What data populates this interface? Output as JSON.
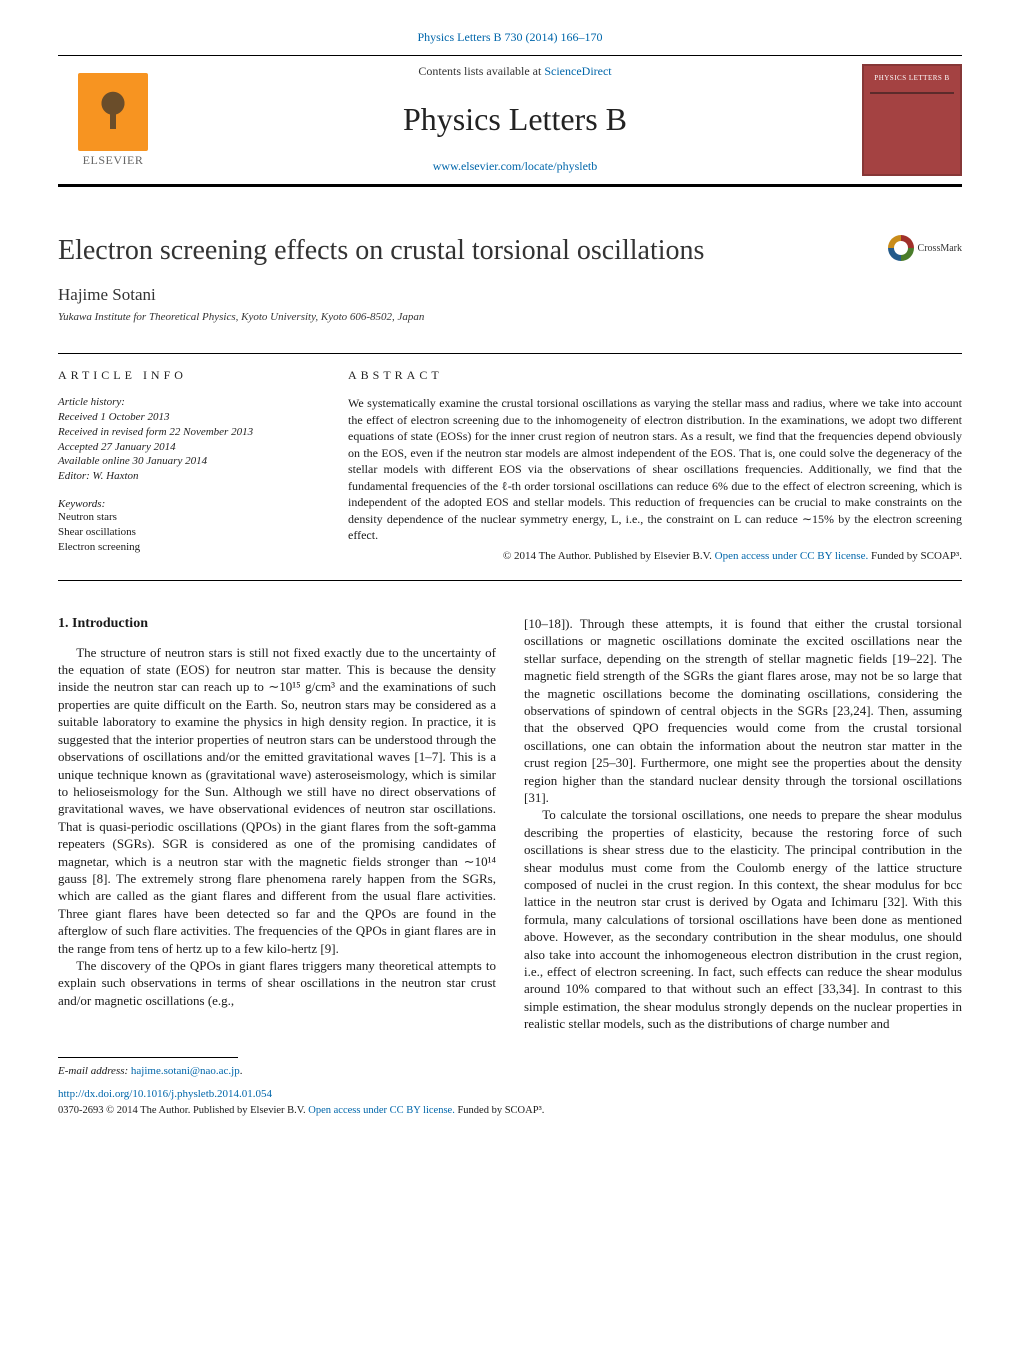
{
  "header": {
    "citation": "Physics Letters B 730 (2014) 166–170",
    "contents_line_prefix": "Contents lists available at ",
    "contents_link": "ScienceDirect",
    "journal_name": "Physics Letters B",
    "journal_home": "www.elsevier.com/locate/physletb",
    "publisher_logo_text": "ELSEVIER",
    "cover_label": "PHYSICS LETTERS B"
  },
  "crossmark_label": "CrossMark",
  "title": "Electron screening effects on crustal torsional oscillations",
  "author": "Hajime Sotani",
  "affiliation": "Yukawa Institute for Theoretical Physics, Kyoto University, Kyoto 606-8502, Japan",
  "article_info": {
    "heading": "article info",
    "history_label": "Article history:",
    "history": [
      "Received 1 October 2013",
      "Received in revised form 22 November 2013",
      "Accepted 27 January 2014",
      "Available online 30 January 2014"
    ],
    "editor": "Editor: W. Haxton",
    "keywords_label": "Keywords:",
    "keywords": [
      "Neutron stars",
      "Shear oscillations",
      "Electron screening"
    ]
  },
  "abstract": {
    "heading": "abstract",
    "text": "We systematically examine the crustal torsional oscillations as varying the stellar mass and radius, where we take into account the effect of electron screening due to the inhomogeneity of electron distribution. In the examinations, we adopt two different equations of state (EOSs) for the inner crust region of neutron stars. As a result, we find that the frequencies depend obviously on the EOS, even if the neutron star models are almost independent of the EOS. That is, one could solve the degeneracy of the stellar models with different EOS via the observations of shear oscillations frequencies. Additionally, we find that the fundamental frequencies of the ℓ-th order torsional oscillations can reduce 6% due to the effect of electron screening, which is independent of the adopted EOS and stellar models. This reduction of frequencies can be crucial to make constraints on the density dependence of the nuclear symmetry energy, L, i.e., the constraint on L can reduce ∼15% by the electron screening effect.",
    "copyright": "© 2014 The Author. Published by Elsevier B.V. ",
    "license_text": "Open access under CC BY license.",
    "funded": " Funded by SCOAP³."
  },
  "section1": {
    "heading": "1. Introduction",
    "p1": "The structure of neutron stars is still not fixed exactly due to the uncertainty of the equation of state (EOS) for neutron star matter. This is because the density inside the neutron star can reach up to ∼10¹⁵ g/cm³ and the examinations of such properties are quite difficult on the Earth. So, neutron stars may be considered as a suitable laboratory to examine the physics in high density region. In practice, it is suggested that the interior properties of neutron stars can be understood through the observations of oscillations and/or the emitted gravitational waves [1–7]. This is a unique technique known as (gravitational wave) asteroseismology, which is similar to helioseismology for the Sun. Although we still have no direct observations of gravitational waves, we have observational evidences of neutron star oscillations. That is quasi-periodic oscillations (QPOs) in the giant flares from the soft-gamma repeaters (SGRs). SGR is considered as one of the promising candidates of magnetar, which is a neutron star with the magnetic fields stronger than ∼10¹⁴ gauss [8]. The extremely strong flare phenomena rarely happen from the SGRs, which are called as the giant flares and different from the usual flare activities. Three giant flares have been detected so far and the QPOs are found in the afterglow of such flare activities. The frequencies of the QPOs in giant flares are in the range from tens of hertz up to a few kilo-hertz [9].",
    "p2": "The discovery of the QPOs in giant flares triggers many theoretical attempts to explain such observations in terms of shear oscillations in the neutron star crust and/or magnetic oscillations (e.g.,",
    "p3_start": "[10–18]). Through these attempts, it is found that either the crustal torsional oscillations or magnetic oscillations dominate the excited oscillations near the stellar surface, depending on the strength of stellar magnetic fields [19–22]. The magnetic field strength of the SGRs the giant flares arose, may not be so large that the magnetic oscillations become the dominating oscillations, considering the observations of spindown of central objects in the SGRs [23,24]. Then, assuming that the observed QPO frequencies would come from the crustal torsional oscillations, one can obtain the information about the neutron star matter in the crust region [25–30]. Furthermore, one might see the properties about the density region higher than the standard nuclear density through the torsional oscillations [31].",
    "p4": "To calculate the torsional oscillations, one needs to prepare the shear modulus describing the properties of elasticity, because the restoring force of such oscillations is shear stress due to the elasticity. The principal contribution in the shear modulus must come from the Coulomb energy of the lattice structure composed of nuclei in the crust region. In this context, the shear modulus for bcc lattice in the neutron star crust is derived by Ogata and Ichimaru [32]. With this formula, many calculations of torsional oscillations have been done as mentioned above. However, as the secondary contribution in the shear modulus, one should also take into account the inhomogeneous electron distribution in the crust region, i.e., effect of electron screening. In fact, such effects can reduce the shear modulus around 10% compared to that without such an effect [33,34]. In contrast to this simple estimation, the shear modulus strongly depends on the nuclear properties in realistic stellar models, such as the distributions of charge number and"
  },
  "footer": {
    "email_label": "E-mail address: ",
    "email": "hajime.sotani@nao.ac.jp",
    "doi": "http://dx.doi.org/10.1016/j.physletb.2014.01.054",
    "issn_line": "0370-2693 © 2014 The Author. Published by Elsevier B.V. ",
    "license_text": "Open access under CC BY license.",
    "funded": " Funded by SCOAP³."
  },
  "colors": {
    "link": "#0066aa",
    "elsevier_orange": "#f79421",
    "cover_red": "#a44242",
    "cover_border": "#863737",
    "text": "#1a1a1a"
  }
}
